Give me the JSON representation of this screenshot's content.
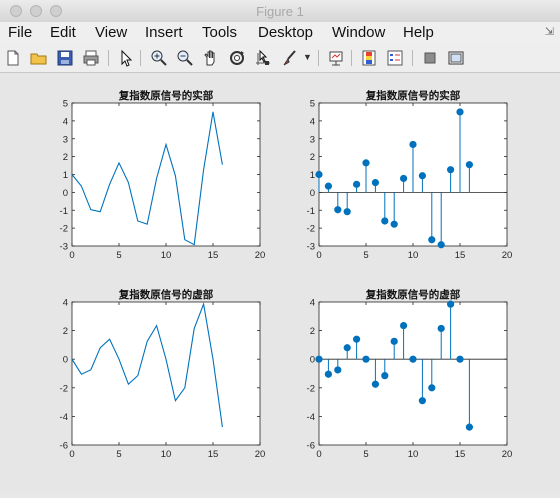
{
  "window": {
    "title": "Figure 1"
  },
  "menu": {
    "items": [
      "File",
      "Edit",
      "View",
      "Insert",
      "Tools",
      "Desktop",
      "Window",
      "Help"
    ]
  },
  "toolbar": {
    "icons": [
      "new-figure-icon",
      "open-file-icon",
      "save-icon",
      "print-icon",
      "pointer-icon",
      "zoom-in-icon",
      "zoom-out-icon",
      "pan-hand-icon",
      "rotate-3d-icon",
      "data-cursor-icon",
      "brush-icon",
      "dropdown-arrow-icon",
      "link-plot-icon",
      "insert-colorbar-icon",
      "insert-legend-icon",
      "hide-plot-tools-icon",
      "show-plot-tools-icon"
    ]
  },
  "colors": {
    "series": "#0072bd",
    "axis": "#262626",
    "background": "#e6e6e6"
  },
  "chart_data": [
    {
      "type": "line",
      "title": "复指数原信号的实部",
      "x": [
        0,
        1,
        2,
        3,
        4,
        5,
        6,
        7,
        8,
        9,
        10,
        11,
        12,
        13,
        14,
        15,
        16
      ],
      "y": [
        1.0,
        0.35,
        -0.97,
        -1.08,
        0.45,
        1.65,
        0.55,
        -1.6,
        -1.78,
        0.78,
        2.68,
        0.93,
        -2.65,
        -2.93,
        1.27,
        4.5,
        1.55
      ],
      "xlim": [
        0,
        20
      ],
      "ylim": [
        -3,
        5
      ],
      "xticks": [
        0,
        5,
        10,
        15,
        20
      ],
      "yticks": [
        -3,
        -2,
        -1,
        0,
        1,
        2,
        3,
        4,
        5
      ]
    },
    {
      "type": "stem",
      "title": "复指数原信号的实部",
      "x": [
        0,
        1,
        2,
        3,
        4,
        5,
        6,
        7,
        8,
        9,
        10,
        11,
        12,
        13,
        14,
        15,
        16
      ],
      "y": [
        1.0,
        0.35,
        -0.97,
        -1.08,
        0.45,
        1.65,
        0.55,
        -1.6,
        -1.78,
        0.78,
        2.68,
        0.93,
        -2.65,
        -2.93,
        1.27,
        4.5,
        1.55
      ],
      "xlim": [
        0,
        20
      ],
      "ylim": [
        -3,
        5
      ],
      "xticks": [
        0,
        5,
        10,
        15,
        20
      ],
      "yticks": [
        -3,
        -2,
        -1,
        0,
        1,
        2,
        3,
        4,
        5
      ]
    },
    {
      "type": "line",
      "title": "复指数原信号的虚部",
      "x": [
        0,
        1,
        2,
        3,
        4,
        5,
        6,
        7,
        8,
        9,
        10,
        11,
        12,
        13,
        14,
        15,
        16
      ],
      "y": [
        0.0,
        -1.05,
        -0.75,
        0.8,
        1.4,
        0.0,
        -1.75,
        -1.15,
        1.25,
        2.35,
        0.0,
        -2.9,
        -2.0,
        2.15,
        3.85,
        0.0,
        -4.75
      ],
      "xlim": [
        0,
        20
      ],
      "ylim": [
        -6,
        4
      ],
      "xticks": [
        0,
        5,
        10,
        15,
        20
      ],
      "yticks": [
        -6,
        -4,
        -2,
        0,
        2,
        4
      ]
    },
    {
      "type": "stem",
      "title": "复指数原信号的虚部",
      "x": [
        0,
        1,
        2,
        3,
        4,
        5,
        6,
        7,
        8,
        9,
        10,
        11,
        12,
        13,
        14,
        15,
        16
      ],
      "y": [
        0.0,
        -1.05,
        -0.75,
        0.8,
        1.4,
        0.0,
        -1.75,
        -1.15,
        1.25,
        2.35,
        0.0,
        -2.9,
        -2.0,
        2.15,
        3.85,
        0.0,
        -4.75
      ],
      "xlim": [
        0,
        20
      ],
      "ylim": [
        -6,
        4
      ],
      "xticks": [
        0,
        5,
        10,
        15,
        20
      ],
      "yticks": [
        -6,
        -4,
        -2,
        0,
        2,
        4
      ]
    }
  ]
}
